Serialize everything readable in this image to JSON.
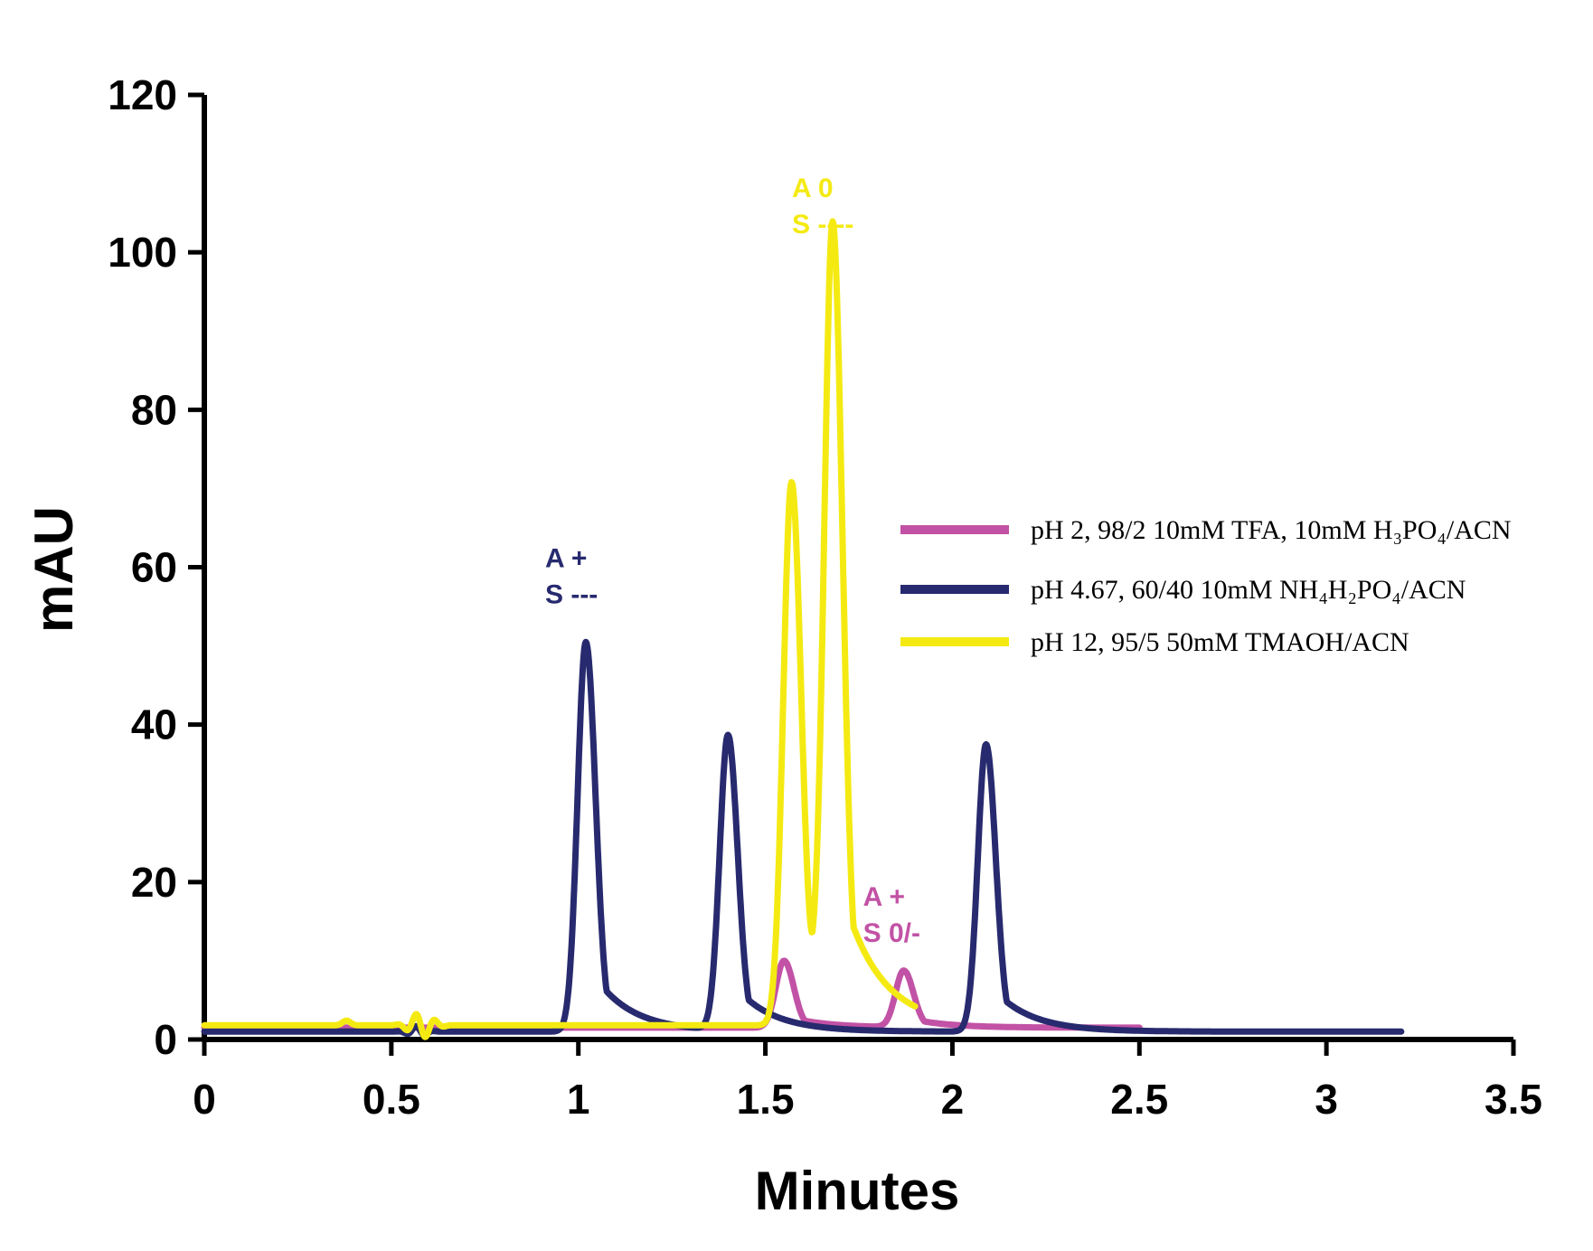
{
  "chart_data": {
    "type": "line",
    "xlabel": "Minutes",
    "ylabel": "mAU",
    "xlim": [
      0,
      3.5
    ],
    "ylim": [
      0,
      120
    ],
    "xticks": [
      "0",
      "0.5",
      "1",
      "1.5",
      "2",
      "2.5",
      "3",
      "3.5"
    ],
    "yticks": [
      "0",
      "20",
      "40",
      "60",
      "80",
      "100",
      "120"
    ],
    "grid": false,
    "legend_position": "right",
    "series": [
      {
        "name": "pH 2,  98/2  10mM TFA, 10mM H₃PO₄/ACN",
        "color": "#c252a5",
        "baseline": 1.5,
        "x_end": 2.5,
        "peaks": [
          {
            "x": 1.55,
            "height": 8.5
          },
          {
            "x": 1.87,
            "height": 7.2
          }
        ],
        "x": [
          0,
          0.5,
          1.0,
          1.5,
          1.55,
          1.7,
          1.87,
          2.0,
          2.5
        ],
        "y": [
          1.5,
          1.5,
          1.5,
          2.0,
          8.5,
          2.0,
          7.2,
          2.0,
          1.2
        ]
      },
      {
        "name": "pH 4.67, 60/40 10mM NH₄H₂PO₄/ACN",
        "color": "#272a6e",
        "baseline": 1.0,
        "x_end": 3.2,
        "peaks": [
          {
            "x": 1.02,
            "height": 49.5
          },
          {
            "x": 1.4,
            "height": 37.5
          },
          {
            "x": 2.09,
            "height": 36.5
          }
        ],
        "x": [
          0,
          0.55,
          1.02,
          1.2,
          1.4,
          1.6,
          2.09,
          2.5,
          3.2
        ],
        "y": [
          1.0,
          1.8,
          49.5,
          1.5,
          37.5,
          1.5,
          36.5,
          2.0,
          1.2
        ]
      },
      {
        "name": "pH 12, 95/5 50mM TMAOH/ACN",
        "color": "#f4ea12",
        "baseline": 1.8,
        "x_end": 1.9,
        "peaks": [
          {
            "x": 1.57,
            "height": 69.0
          },
          {
            "x": 1.68,
            "height": 98.0
          }
        ],
        "x": [
          0,
          0.38,
          0.57,
          1.57,
          1.62,
          1.68,
          1.9
        ],
        "y": [
          1.8,
          2.5,
          4.0,
          69.0,
          12.5,
          98.0,
          1.8
        ]
      }
    ],
    "annotations": [
      {
        "lines": [
          "A   +",
          "S  ---"
        ],
        "color": "#272a6e",
        "x": 1.02,
        "y": 60
      },
      {
        "lines": [
          "A   0",
          "S  ----"
        ],
        "color": "#f4ea12",
        "x": 1.68,
        "y": 107
      },
      {
        "lines": [
          "A  +",
          "S  0/-"
        ],
        "color": "#c252a5",
        "x": 1.87,
        "y": 17
      }
    ]
  }
}
